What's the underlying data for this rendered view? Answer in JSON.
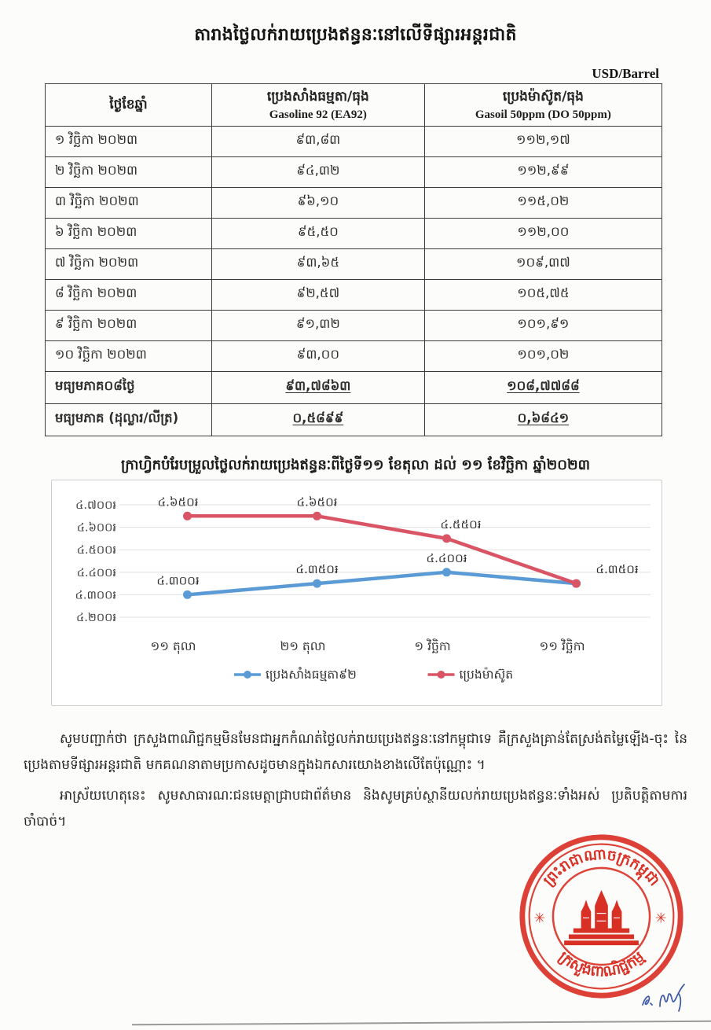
{
  "title": "តារាងថ្លៃលក់រាយប្រេងឥន្ធនៈនៅលើទីផ្សារអន្តរជាតិ",
  "unit_label": "USD/Barrel",
  "table": {
    "headers": {
      "date": "ថ្ងៃខែឆ្នាំ",
      "gasoline_kh": "ប្រេងសាំងធម្មតា/ធុង",
      "gasoline_en": "Gasoline 92 (EA92)",
      "gasoil_kh": "ប្រេងម៉ាស៊ូត/ធុង",
      "gasoil_en": "Gasoil 50ppm (DO 50ppm)"
    },
    "rows": [
      {
        "date": "១ វិច្ឆិកា ២០២៣",
        "gasoline": "៩៣,៨៣",
        "gasoil": "១១២,១៧"
      },
      {
        "date": "២ វិច្ឆិកា ២០២៣",
        "gasoline": "៩៤,៣២",
        "gasoil": "១១២,៩៩"
      },
      {
        "date": "៣ វិច្ឆិកា ២០២៣",
        "gasoline": "៩៦,១០",
        "gasoil": "១១៥,០២"
      },
      {
        "date": "៦ វិច្ឆិកា ២០២៣",
        "gasoline": "៩៥,៥០",
        "gasoil": "១១២,០០"
      },
      {
        "date": "៧ វិច្ឆិកា ២០២៣",
        "gasoline": "៩៣,៦៥",
        "gasoil": "១០៩,៣៧"
      },
      {
        "date": "៨ វិច្ឆិកា ២០២៣",
        "gasoline": "៩២,៥៧",
        "gasoil": "១០៥,៧៥"
      },
      {
        "date": "៩ វិច្ឆិកា ២០២៣",
        "gasoline": "៩១,៣២",
        "gasoil": "១០១,៩១"
      },
      {
        "date": "១០ វិច្ឆិកា ២០២៣",
        "gasoline": "៩៣,០០",
        "gasoil": "១០១,០២"
      }
    ],
    "summary_rows": [
      {
        "label": "មធ្យមភាគ០៨ថ្ងៃ",
        "gasoline": "៩៣,៧៨៦៣",
        "gasoil": "១០៨,៧៧៨៨"
      },
      {
        "label": "មធ្យមភាគ (ដុល្លារ/លីត្រ)",
        "gasoline": "០,៥៨៩៩",
        "gasoil": "០,៦៨៤១"
      }
    ]
  },
  "chart_title": "ក្រាហ្វិកបំរែបម្រួលថ្លៃលក់រាយប្រេងឥន្ធនៈពីថ្ងៃទី១១ ខែតុលា ដល់ ១១ ខែវិច្ឆិកា ឆ្នាំ២០២៣",
  "chart_data": {
    "type": "line",
    "categories": [
      "១១ តុលា",
      "២១ តុលា",
      "១ វិច្ឆិកា",
      "១១ វិច្ឆិកា"
    ],
    "series": [
      {
        "name": "ប្រេងសាំងធម្មតា៩២",
        "values": [
          4300,
          4350,
          4400,
          4350
        ],
        "point_labels": [
          "៤.៣០០៛",
          "៤.៣៥០៛",
          "៤.៤០០៛",
          ""
        ],
        "color": "#5B9BD5"
      },
      {
        "name": "ប្រេងម៉ាស៊ូត",
        "values": [
          4650,
          4650,
          4550,
          4350
        ],
        "point_labels": [
          "៤.៦៥០៛",
          "៤.៦៥០៛",
          "៤.៥៥០៛",
          "៤.៣៥០៛"
        ],
        "color": "#D95565"
      }
    ],
    "y_ticks": [
      "៤.៧០០៛",
      "៤.៦០០៛",
      "៤.៥០០៛",
      "៤.៤០០៛",
      "៤.៣០០៛",
      "៤.២០០៛"
    ],
    "ylim": [
      4200,
      4700
    ],
    "grid": true,
    "legend_position": "bottom",
    "xlabel": "",
    "ylabel": ""
  },
  "paragraphs": {
    "p1": "សូមបញ្ជាក់ថា ក្រសួងពាណិជ្ជកម្មមិនមែនជាអ្នកកំណត់ថ្លៃលក់រាយប្រេងឥន្ធនៈនៅកម្ពុជាទេ គឺក្រសួងគ្រាន់តែស្រង់តម្លៃឡើង-ចុះ នៃប្រេងតាមទីផ្សារអន្តរជាតិ មកគណនាតាមប្រកាសដូចមានក្នុងឯកសារយោងខាងលើតែប៉ុណ្ណោះ ។",
    "p2": "អាស្រ័យហេតុនេះ សូមសាធារណៈជនមេត្តាជ្រាបជាព័ត៌មាន និងសូមគ្រប់ស្ថានីយលក់រាយប្រេងឥន្ធនៈទាំងអស់ ប្រតិបត្តិតាមការចាំបាច់។",
    "p2_tail": "ចាំបាច់។"
  },
  "stamp": {
    "top_text": "ព្រះរាជាណាចក្រកម្ពុជា",
    "bottom_text": "ក្រសួងពាណិជ្ជកម្ម",
    "color": "#d93025",
    "emblem": "angkor-wat-temple"
  },
  "signature_color": "#3a57a8"
}
